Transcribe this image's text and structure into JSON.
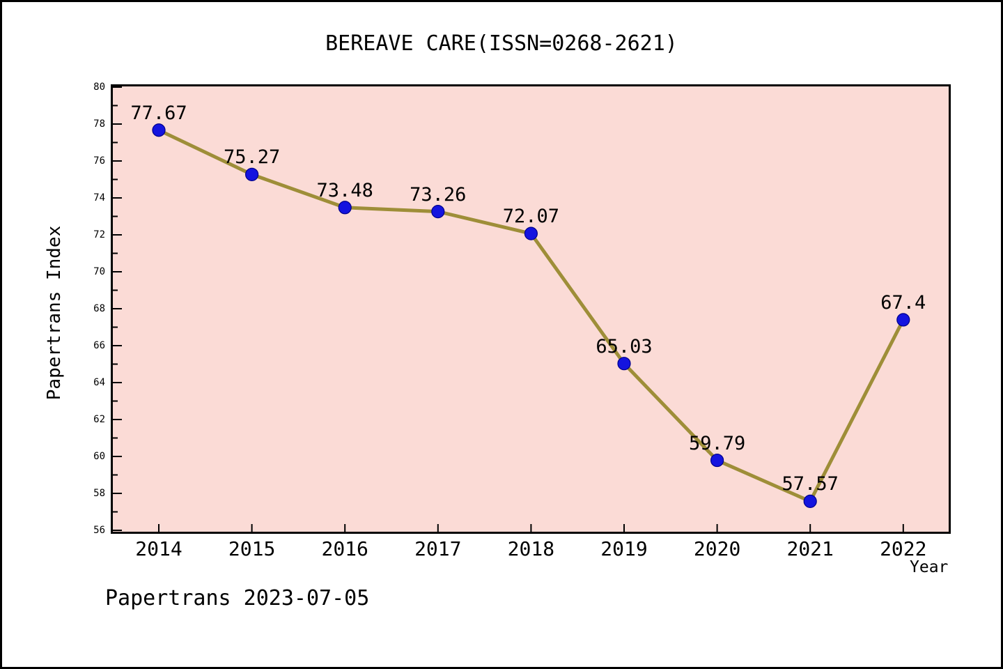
{
  "window": {
    "background": "#ffffff",
    "border_color": "#000000"
  },
  "chart_data": {
    "type": "line",
    "title": "BEREAVE CARE(ISSN=0268-2621)",
    "xlabel": "Year",
    "ylabel": "Papertrans Index",
    "categories": [
      "2014",
      "2015",
      "2016",
      "2017",
      "2018",
      "2019",
      "2020",
      "2021",
      "2022"
    ],
    "series": [
      {
        "name": "Papertrans Index",
        "values": [
          77.67,
          75.27,
          73.48,
          73.26,
          72.07,
          65.03,
          59.79,
          57.57,
          67.4
        ]
      }
    ],
    "point_labels": [
      "77.67",
      "75.27",
      "73.48",
      "73.26",
      "72.07",
      "65.03",
      "59.79",
      "57.57",
      "67.4"
    ],
    "ylim": [
      56,
      80
    ],
    "ytick_interval": 2,
    "ytick_minor_interval": 1,
    "grid": false,
    "legend": false,
    "footer": "Papertrans 2023-07-05",
    "colors": {
      "plot_background": "#FBDBD6",
      "line": "#9E8E38",
      "marker": "#1414DF",
      "marker_edge": "#00008B",
      "axis": "#000000",
      "text": "#000000"
    }
  }
}
